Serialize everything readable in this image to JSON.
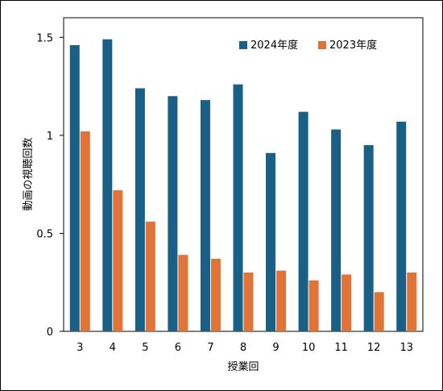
{
  "chart_data": {
    "type": "bar",
    "xlabel": "授業回",
    "ylabel": "動画の視聴回数",
    "categories": [
      "3",
      "4",
      "5",
      "6",
      "7",
      "8",
      "9",
      "10",
      "11",
      "12",
      "13"
    ],
    "ylim": [
      0,
      1.6
    ],
    "yticks": [
      {
        "value": 0,
        "label": "0"
      },
      {
        "value": 0.5,
        "label": "0.5"
      },
      {
        "value": 1,
        "label": "1"
      },
      {
        "value": 1.5,
        "label": "1.5"
      }
    ],
    "legend_position": "top-right",
    "series": [
      {
        "name": "2024年度",
        "color": "#1a5f85",
        "values": [
          1.46,
          1.49,
          1.24,
          1.2,
          1.18,
          1.26,
          0.91,
          1.12,
          1.03,
          0.95,
          1.07
        ]
      },
      {
        "name": "2023年度",
        "color": "#e07438",
        "values": [
          1.02,
          0.72,
          0.56,
          0.39,
          0.37,
          0.3,
          0.31,
          0.26,
          0.29,
          0.2,
          0.3
        ]
      }
    ]
  }
}
